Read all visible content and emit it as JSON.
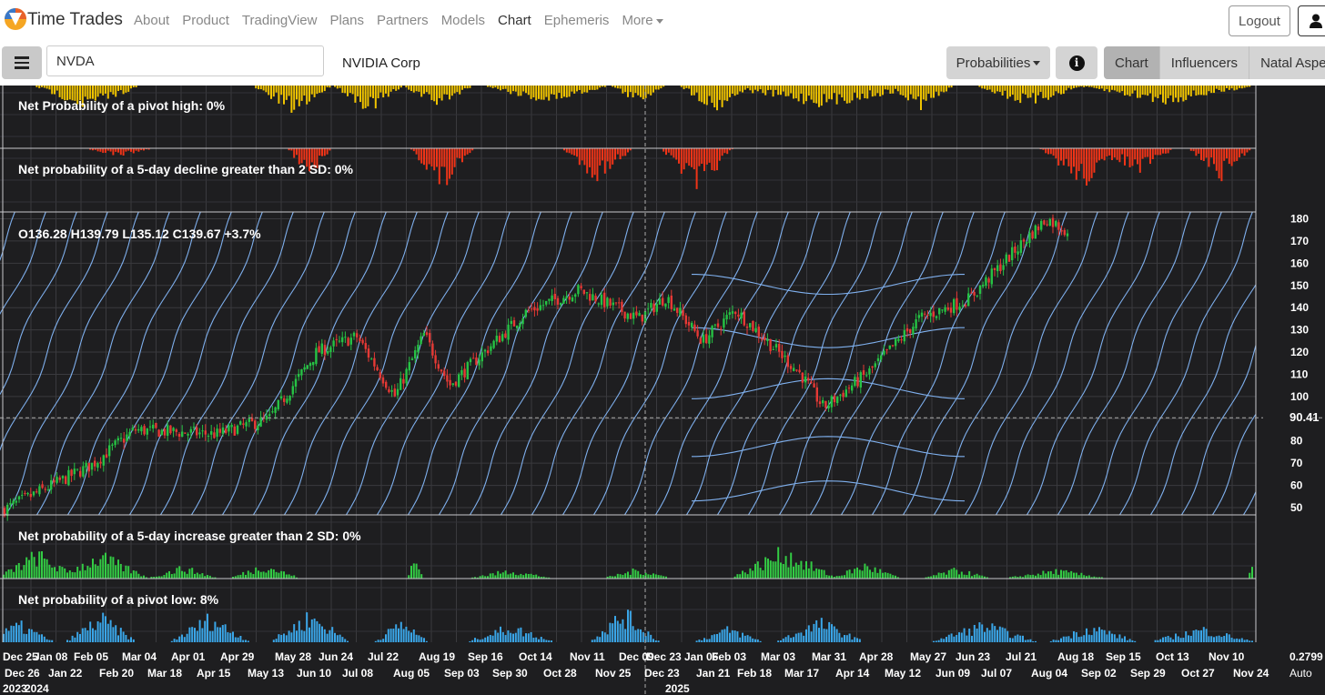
{
  "nav": {
    "brand": "Time Trades",
    "links": [
      "About",
      "Product",
      "TradingView",
      "Plans",
      "Partners",
      "Models",
      "Chart",
      "Ephemeris",
      "More"
    ],
    "active": "Chart",
    "logout": "Logout"
  },
  "toolbar": {
    "symbol": "NVDA",
    "company": "NVIDIA Corp",
    "probabilities": "Probabilities",
    "tabs": [
      "Chart",
      "Influencers",
      "Natal Aspects"
    ],
    "active_tab": "Chart"
  },
  "panels": {
    "pivot_high": "Net Probability of a pivot high: 0%",
    "decline": "Net probability of a 5-day decline greater than 2 SD: 0%",
    "ohlc": "O136.28 H139.79 L135.12 C139.67 +3.7%",
    "increase": "Net probability of a 5-day increase greater than 2 SD: 0%",
    "pivot_low": "Net probability of a pivot low: 8%"
  },
  "price_axis": {
    "ticks": [
      "180",
      "170",
      "160",
      "150",
      "140",
      "130",
      "120",
      "110",
      "100",
      "80",
      "70",
      "60",
      "50"
    ],
    "crosshair_value": "90.41",
    "bottom_value": "0.2799",
    "mode": "Auto"
  },
  "time_axis": {
    "row1": [
      "Dec 25",
      "Jan 08",
      "Feb 05",
      "Mar 04",
      "Apr 01",
      "Apr 29",
      "May 28",
      "Jun 24",
      "Jul 22",
      "Aug 19",
      "Sep 16",
      "Oct 14",
      "Nov 11",
      "Dec 09",
      "Dec 23",
      "Jan 06",
      "Feb 03",
      "Mar 03",
      "Mar 31",
      "Apr 28",
      "May 27",
      "Jun 23",
      "Jul 21",
      "Aug 18",
      "Sep 15",
      "Oct 13",
      "Nov 10"
    ],
    "row2": [
      "Dec 26",
      "Jan 22",
      "Feb 20",
      "Mar 18",
      "Apr 15",
      "May 13",
      "Jun 10",
      "Jul 08",
      "Aug 05",
      "Sep 03",
      "Sep 30",
      "Oct 28",
      "Nov 25",
      "Dec 23",
      "Jan 21",
      "Feb 18",
      "Mar 17",
      "Apr 14",
      "May 12",
      "Jun 09",
      "Jul 07",
      "Aug 04",
      "Sep 02",
      "Sep 29",
      "Oct 27",
      "Nov 24"
    ],
    "row3": [
      "2023",
      "2024",
      "2025"
    ]
  },
  "chart_data": {
    "type": "candlestick",
    "ticker": "NVDA",
    "ylim": [
      45,
      185
    ],
    "crosshair_price": 90.41,
    "last_bar": {
      "open": 136.28,
      "high": 139.79,
      "low": 135.12,
      "close": 139.67,
      "change_pct": 3.7
    },
    "price_path": [
      {
        "date": "Dec 25 2023",
        "close": 49
      },
      {
        "date": "Feb 05 2024",
        "close": 69
      },
      {
        "date": "Mar 04 2024",
        "close": 85
      },
      {
        "date": "Apr 15 2024",
        "close": 83
      },
      {
        "date": "May 13 2024",
        "close": 90
      },
      {
        "date": "Jun 10 2024",
        "close": 120
      },
      {
        "date": "Jul 08 2024",
        "close": 127
      },
      {
        "date": "Aug 05 2024",
        "close": 100
      },
      {
        "date": "Aug 19 2024",
        "close": 128
      },
      {
        "date": "Sep 03 2024",
        "close": 105
      },
      {
        "date": "Oct 14 2024",
        "close": 138
      },
      {
        "date": "Nov 11 2024",
        "close": 148
      },
      {
        "date": "Dec 23 2024",
        "close": 135
      },
      {
        "date": "Jan 06 2025",
        "close": 145
      },
      {
        "date": "Jan 21 2025",
        "close": 125
      },
      {
        "date": "Feb 18 2025",
        "close": 139
      },
      {
        "date": "Mar 17 2025",
        "close": 110
      },
      {
        "date": "Apr 07 2025",
        "close": 95
      },
      {
        "date": "Apr 28 2025",
        "close": 111
      },
      {
        "date": "May 27 2025",
        "close": 135
      },
      {
        "date": "Jun 23 2025",
        "close": 144
      },
      {
        "date": "Jul 21 2025",
        "close": 172
      },
      {
        "date": "Aug 04 2025",
        "close": 180
      },
      {
        "date": "Aug 18 2025",
        "close": 174
      }
    ],
    "colors": {
      "background": "#1e1e20",
      "pivot_high": "#f0c400",
      "decline": "#f03418",
      "increase": "#33cc44",
      "pivot_low": "#3aa6e8",
      "bands": "#7fb0ee",
      "up_candle": "#26c244",
      "down_candle": "#e53935"
    }
  }
}
